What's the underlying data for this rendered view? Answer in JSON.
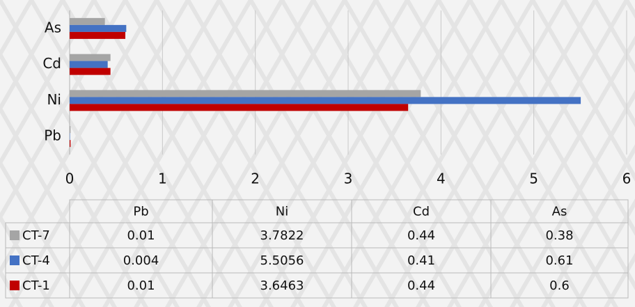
{
  "chart_data": {
    "type": "bar",
    "orientation": "horizontal",
    "categories": [
      "Pb",
      "Ni",
      "Cd",
      "As"
    ],
    "series": [
      {
        "name": "CT-7",
        "color": "#a5a5a5",
        "values": [
          0.01,
          3.7822,
          0.44,
          0.38
        ]
      },
      {
        "name": "CT-4",
        "color": "#4472c4",
        "values": [
          0.004,
          5.5056,
          0.41,
          0.61
        ]
      },
      {
        "name": "CT-1",
        "color": "#c00000",
        "values": [
          0.01,
          3.6463,
          0.44,
          0.6
        ]
      }
    ],
    "xlim": [
      0,
      6
    ],
    "xticks": [
      0,
      1,
      2,
      3,
      4,
      5,
      6
    ],
    "grid": true
  }
}
